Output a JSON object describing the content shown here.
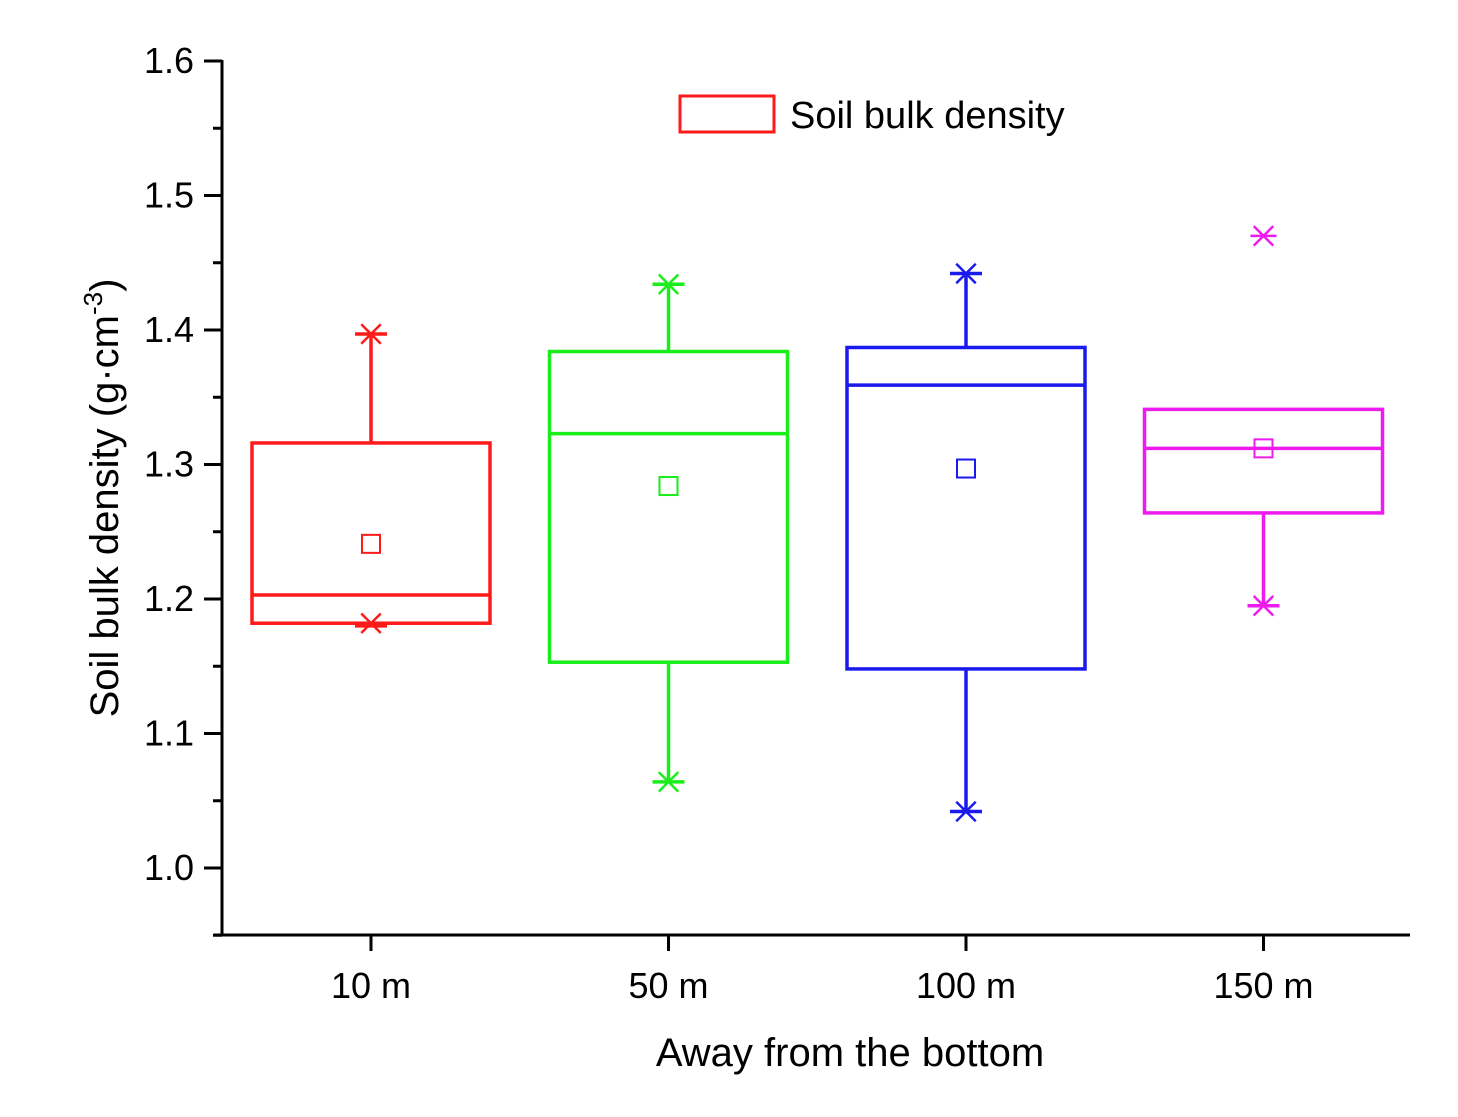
{
  "chart_data": {
    "type": "box",
    "title": "",
    "xlabel": "Away from the bottom",
    "ylabel": "Soil bulk density  (g·cm",
    "ylabel_sup": "-3",
    "ylabel_close": ")",
    "ylim": [
      0.95,
      1.6
    ],
    "yticks": [
      "1.0",
      "1.1",
      "1.2",
      "1.3",
      "1.4",
      "1.5",
      "1.6"
    ],
    "categories": [
      "10 m",
      "50 m",
      "100 m",
      "150 m"
    ],
    "legend": {
      "label": "Soil bulk density",
      "position": "top-center"
    },
    "boxes": [
      {
        "category": "10 m",
        "color": "#ff1a1a",
        "whisker_low": 1.18,
        "q1": 1.182,
        "median": 1.203,
        "q3": 1.316,
        "whisker_high": 1.397,
        "mean": 1.241,
        "min_marker": 1.182,
        "max_marker": 1.397,
        "outliers": []
      },
      {
        "category": "50 m",
        "color": "#1aee1a",
        "whisker_low": 1.064,
        "q1": 1.153,
        "median": 1.323,
        "q3": 1.384,
        "whisker_high": 1.434,
        "mean": 1.284,
        "min_marker": 1.064,
        "max_marker": 1.434,
        "outliers": []
      },
      {
        "category": "100 m",
        "color": "#1a1aee",
        "whisker_low": 1.042,
        "q1": 1.148,
        "median": 1.359,
        "q3": 1.387,
        "whisker_high": 1.442,
        "mean": 1.297,
        "min_marker": 1.042,
        "max_marker": 1.442,
        "outliers": []
      },
      {
        "category": "150 m",
        "color": "#ee1aee",
        "whisker_low": 1.195,
        "q1": 1.264,
        "median": 1.312,
        "q3": 1.341,
        "whisker_high": 1.341,
        "mean": 1.312,
        "min_marker": 1.195,
        "max_marker": null,
        "outliers": [
          1.47
        ]
      }
    ]
  }
}
